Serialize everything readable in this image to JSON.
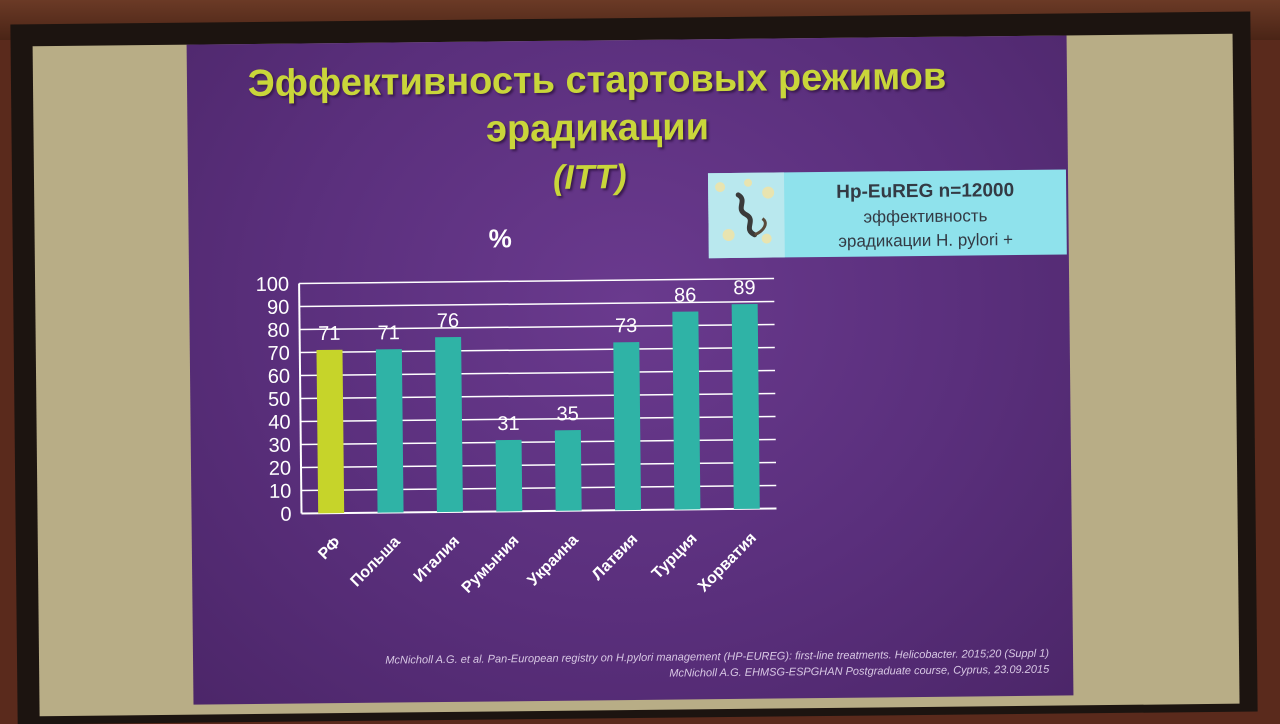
{
  "slide": {
    "title_line1": "Эффективность стартовых режимов",
    "title_line2": "эрадикации",
    "subtitle": "(ITT)",
    "unit_label": "%",
    "info_box": {
      "line1": "Hp-EuREG n=12000",
      "line2": "эффективность",
      "line3": "эрадикации H. pylori +",
      "icon": "bacteria-illustration"
    },
    "reference_line1": "McNicholl A.G. et al. Pan-European registry on H.pylori management (HP-EUREG): first-line treatments. Helicobacter. 2015;20 (Suppl 1)",
    "reference_line2": "McNicholl A.G. EHMSG-ESPGHAN Postgraduate course, Cyprus, 23.09.2015"
  },
  "chart_data": {
    "type": "bar",
    "categories": [
      "РФ",
      "Польша",
      "Италия",
      "Румыния",
      "Украина",
      "Латвия",
      "Турция",
      "Хорватия"
    ],
    "values": [
      71,
      71,
      76,
      31,
      35,
      73,
      86,
      89
    ],
    "title": "",
    "xlabel": "",
    "ylabel": "%",
    "ylim": [
      0,
      100
    ],
    "yticks": [
      0,
      10,
      20,
      30,
      40,
      50,
      60,
      70,
      80,
      90,
      100
    ],
    "grid": true,
    "highlight_index": 0,
    "colors": {
      "highlight": "#c6d42a",
      "bar": "#2fb3a6",
      "grid": "#ffffff",
      "label": "#ffffff"
    }
  }
}
